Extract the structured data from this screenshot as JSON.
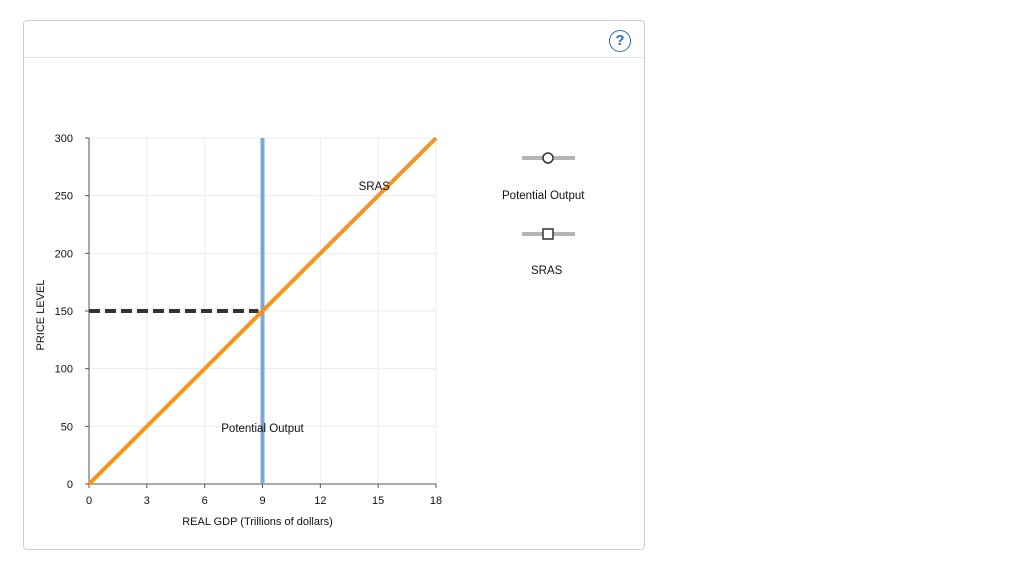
{
  "help_icon": {
    "glyph": "?",
    "name": "help-icon"
  },
  "chart_data": {
    "type": "line",
    "xlabel": "REAL GDP (Trillions of dollars)",
    "ylabel": "PRICE LEVEL",
    "xlim": [
      0,
      18
    ],
    "ylim": [
      0,
      300
    ],
    "xticks": [
      0,
      3,
      6,
      9,
      12,
      15,
      18
    ],
    "yticks": [
      0,
      50,
      100,
      150,
      200,
      250,
      300
    ],
    "grid": true,
    "legend_position": "right",
    "series": [
      {
        "name": "Potential Output",
        "color": "#7aa9d6",
        "marker": "circle",
        "points": [
          [
            9,
            0
          ],
          [
            9,
            300
          ]
        ]
      },
      {
        "name": "SRAS",
        "color": "#f7941d",
        "marker": "square",
        "points": [
          [
            0,
            0
          ],
          [
            18,
            300
          ]
        ]
      }
    ],
    "reference_lines": [
      {
        "color": "#333333",
        "style": "dashed",
        "points": [
          [
            0,
            150
          ],
          [
            9,
            150
          ]
        ]
      }
    ],
    "annotations": [
      {
        "text": "SRAS",
        "x": 14.8,
        "y": 255
      },
      {
        "text": "Potential Output",
        "x": 9,
        "y": 45
      }
    ]
  },
  "legend": {
    "items": [
      {
        "label": "Potential Output",
        "marker": "circle"
      },
      {
        "label": "SRAS",
        "marker": "square"
      }
    ]
  }
}
